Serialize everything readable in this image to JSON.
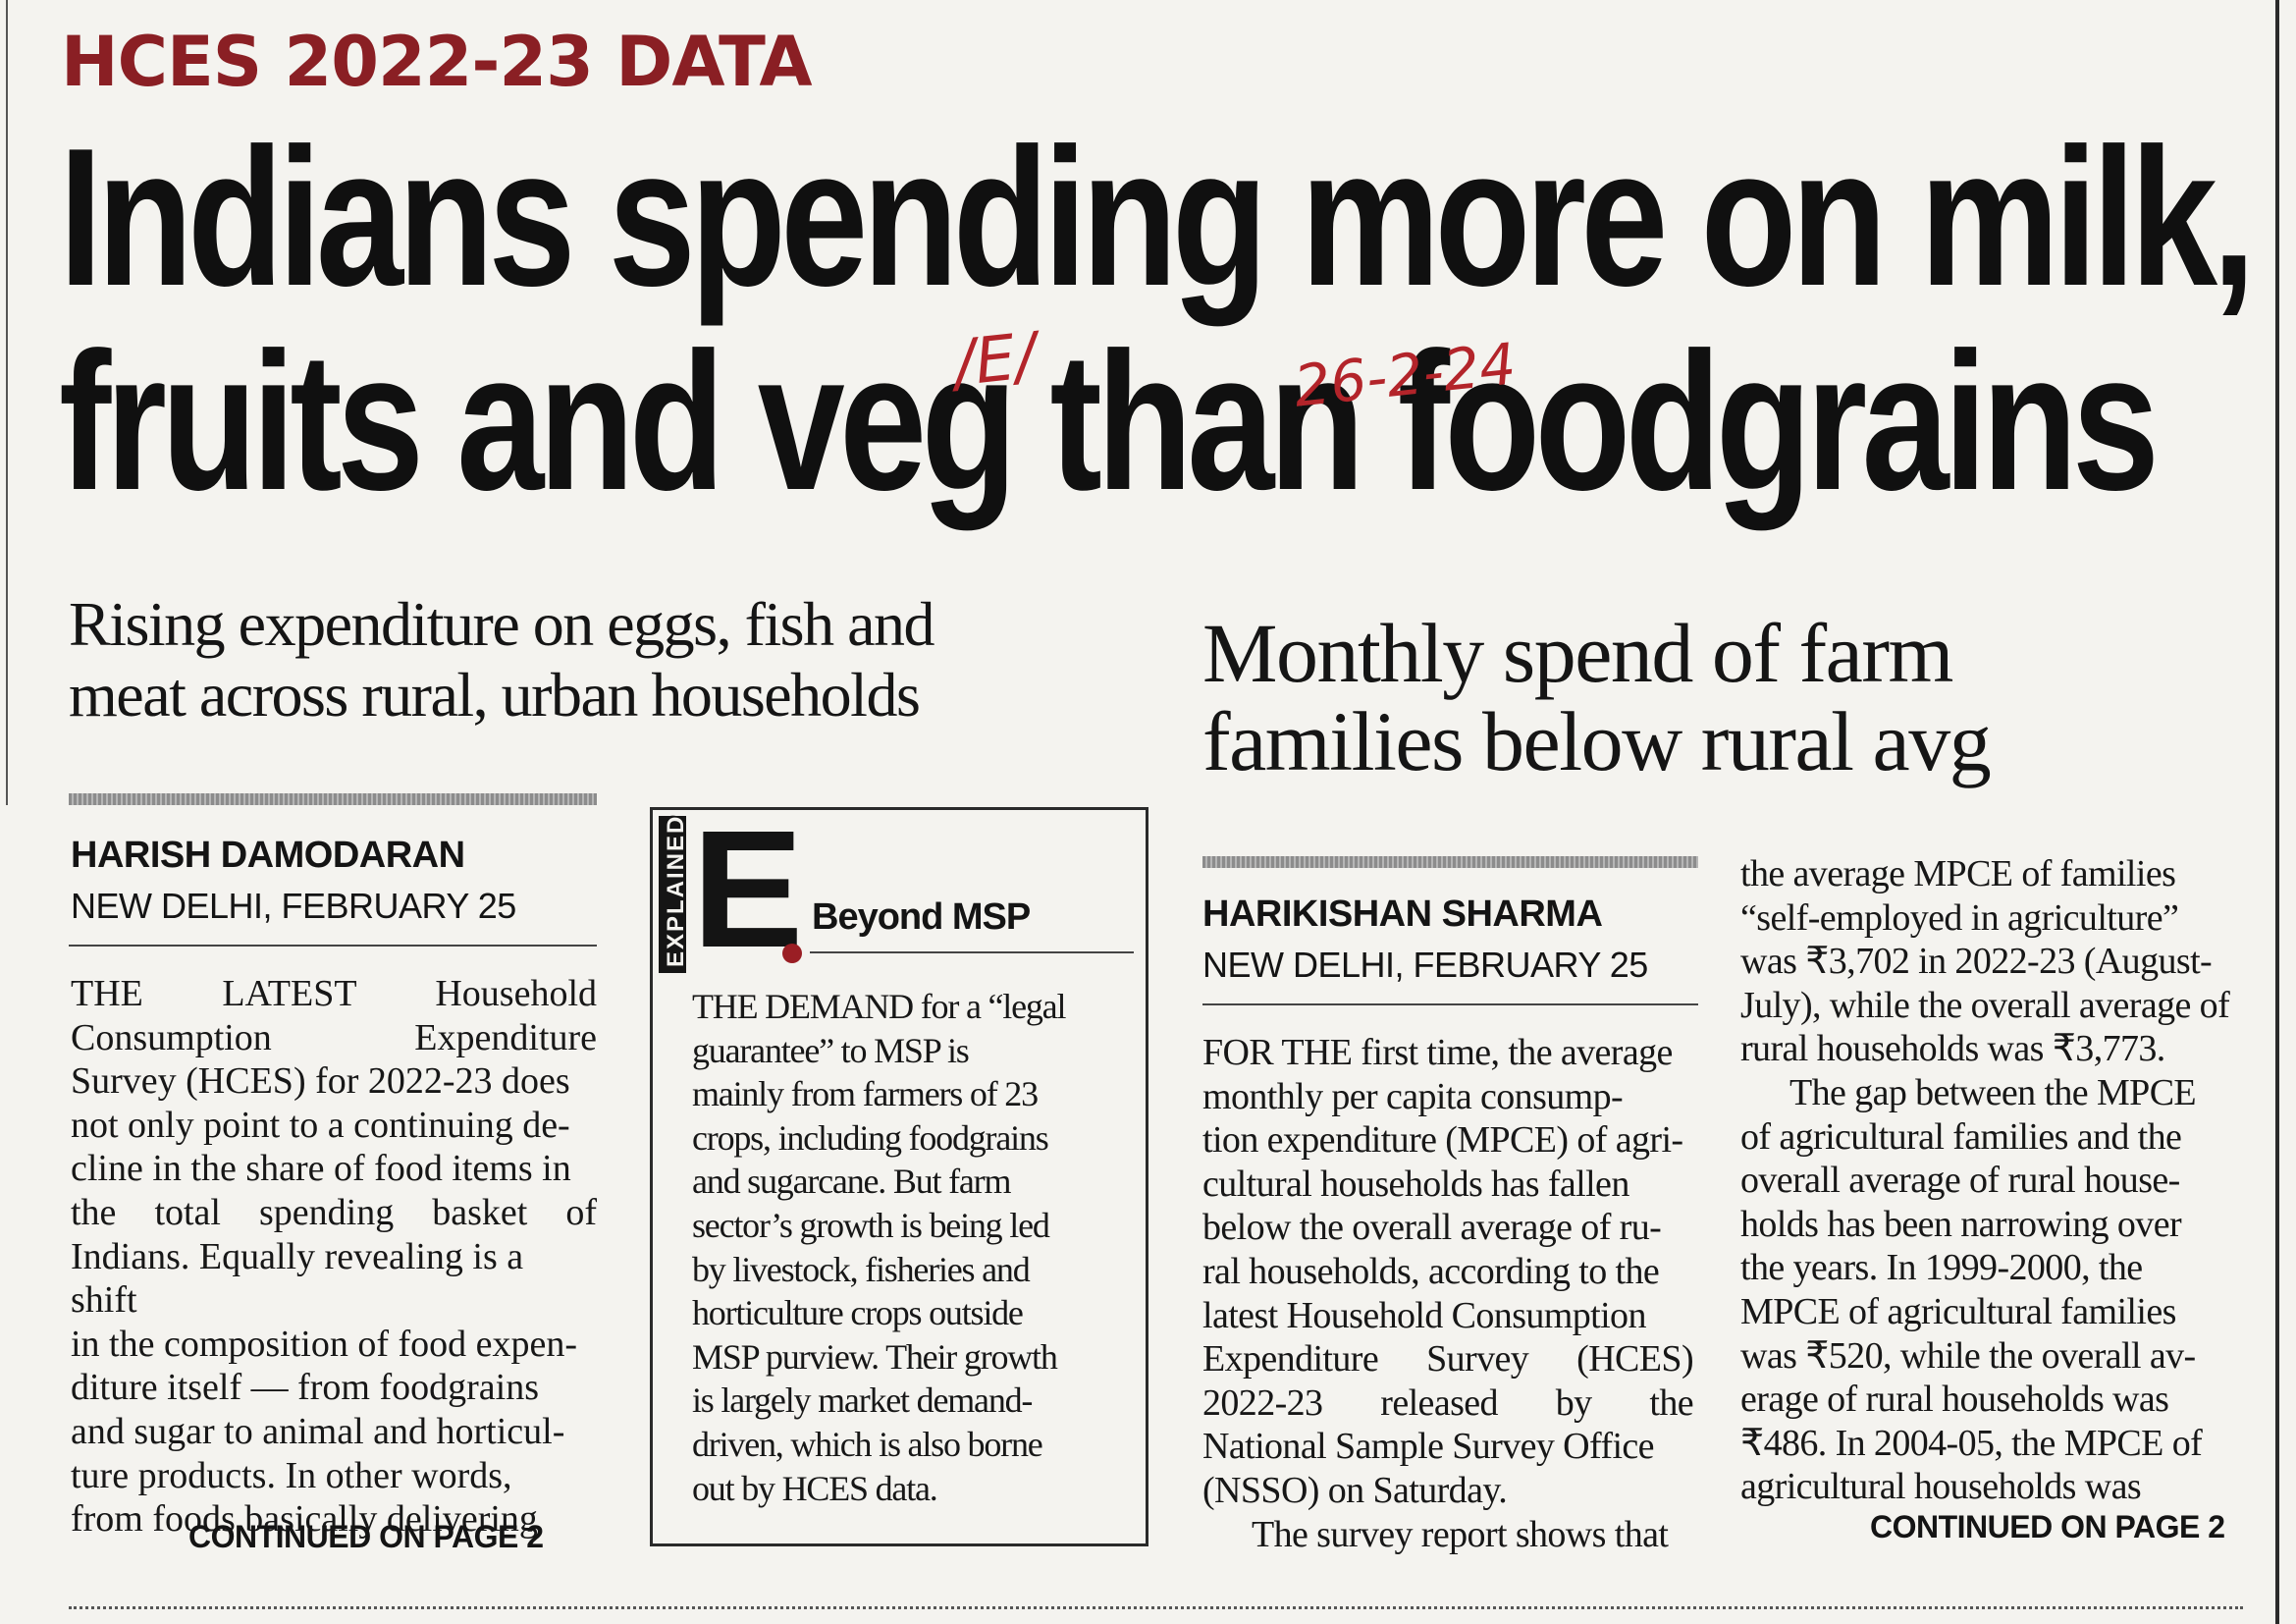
{
  "kicker": "HCES 2022-23 DATA",
  "headline": {
    "line1": "Indians spending more on milk,",
    "line2": "fruits and veg than foodgrains"
  },
  "handwritten": {
    "tag": "/E/",
    "date": "26-2-24"
  },
  "story1": {
    "subheading_line1": "Rising expenditure on eggs, fish and",
    "subheading_line2": "meat across rural, urban households",
    "byline": "HARISH DAMODARAN",
    "dateline": "NEW DELHI, FEBRUARY 25",
    "lines": [
      "THE LATEST Household",
      "Consumption Expenditure",
      "Survey (HCES) for 2022-23 does",
      "not only point to a continuing de-",
      "cline in the share of food items in",
      "the total spending basket of",
      "Indians. Equally revealing is a shift",
      "in the composition of food expen-",
      "diture itself — from foodgrains",
      "and sugar to animal and horticul-",
      "ture products. In other words,",
      "from foods basically delivering"
    ],
    "continued": "CONTINUED ON PAGE 2"
  },
  "explained_box": {
    "vertical_label": "EXPLAINED",
    "big_letter": "E",
    "title": "Beyond MSP",
    "lines": [
      "THE DEMAND for a “legal",
      "guarantee” to MSP is",
      "mainly from farmers of 23",
      "crops, including foodgrains",
      "and sugarcane. But farm",
      "sector’s growth is being led",
      "by livestock, fisheries and",
      "horticulture crops outside",
      "MSP purview. Their growth",
      "is largely market demand-",
      "driven, which is also borne",
      "out by HCES data."
    ]
  },
  "story2": {
    "subheading_line1": "Monthly spend of farm",
    "subheading_line2": "families below rural avg",
    "byline": "HARIKISHAN SHARMA",
    "dateline": "NEW DELHI, FEBRUARY 25",
    "col1_lines": [
      "FOR THE first time, the average",
      "monthly per capita consump-",
      "tion expenditure (MPCE) of agri-",
      "cultural households has fallen",
      "below the overall average of ru-",
      "ral households, according to the",
      "latest Household Consumption",
      "Expenditure Survey (HCES)",
      "2022-23 released by the",
      "National Sample Survey Office",
      "(NSSO) on Saturday.",
      "The survey report shows that"
    ],
    "col2_lines": [
      "the average MPCE of families",
      "“self-employed in agriculture”",
      "was ₹3,702 in 2022-23 (August-",
      "July), while the overall average of",
      "rural households was ₹3,773.",
      "The gap between the MPCE",
      "of agricultural families and the",
      "overall average of rural house-",
      "holds has been narrowing over",
      "the years. In 1999-2000, the",
      "MPCE of agricultural families",
      "was ₹520, while the overall av-",
      "erage of rural households was",
      "₹486. In 2004-05, the MPCE of",
      "agricultural households was"
    ],
    "continued": "CONTINUED ON PAGE 2"
  }
}
